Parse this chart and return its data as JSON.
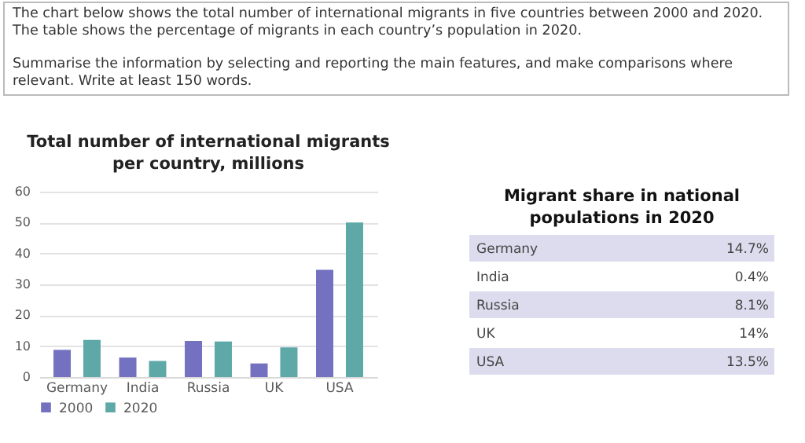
{
  "chart_data": [
    {
      "type": "other",
      "annotations": [
        "The chart below shows the total number of international migrants in five countries between 2000 and 2020. The table shows the percentage of migrants in each country’s population in 2020.",
        "Summarise the information by selecting and reporting the main features, and make comparisons where relevant. Write at least 150 words."
      ]
    },
    {
      "type": "bar",
      "title": "Total number of international migrants per country, millions",
      "categories": [
        "Germany",
        "India",
        "Russia",
        "UK",
        "USA"
      ],
      "series": [
        {
          "name": "2000",
          "color": "#7472c0",
          "values": [
            8.8,
            6.3,
            11.7,
            4.4,
            34.7
          ]
        },
        {
          "name": "2020",
          "color": "#5fa8a8",
          "values": [
            12,
            5.2,
            11.5,
            9.6,
            50
          ]
        }
      ],
      "ylim": [
        0,
        60
      ],
      "yticks": [
        0,
        10,
        20,
        30,
        40,
        50,
        60
      ],
      "grid": "y",
      "legend": "bottom"
    },
    {
      "type": "other",
      "title": "Migrant share in national populations in 2020",
      "categories": [
        "Germany",
        "India",
        "Russia",
        "UK",
        "USA"
      ],
      "value_labels": [
        "14.7%",
        "0.4%",
        "8.1%",
        "14%",
        "13.5%"
      ]
    }
  ]
}
